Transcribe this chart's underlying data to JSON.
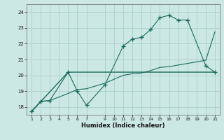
{
  "title": "",
  "xlabel": "Humidex (Indice chaleur)",
  "xlim": [
    0.5,
    21.5
  ],
  "ylim": [
    17.5,
    24.5
  ],
  "yticks": [
    18,
    19,
    20,
    21,
    22,
    23,
    24
  ],
  "xticks": [
    1,
    2,
    3,
    4,
    5,
    6,
    7,
    9,
    10,
    11,
    12,
    13,
    14,
    15,
    16,
    17,
    18,
    19,
    20,
    21
  ],
  "bg_color": "#cce8e4",
  "line_color": "#1a6b5e",
  "grid_color": "#aaceca",
  "line1_x": [
    1,
    2,
    3,
    5,
    6,
    7,
    9,
    11,
    12,
    13,
    14,
    15,
    16,
    17,
    18,
    20,
    21
  ],
  "line1_y": [
    17.7,
    18.35,
    18.4,
    20.2,
    19.0,
    18.1,
    19.4,
    21.85,
    22.3,
    22.4,
    22.9,
    23.65,
    23.8,
    23.5,
    23.5,
    20.6,
    20.2
  ],
  "line2_x": [
    1,
    5,
    21
  ],
  "line2_y": [
    17.7,
    20.2,
    20.2
  ],
  "line3_x": [
    1,
    2,
    3,
    5,
    6,
    7,
    9,
    11,
    12,
    13,
    14,
    15,
    16,
    17,
    18,
    19,
    20,
    21
  ],
  "line3_y": [
    17.7,
    18.35,
    18.4,
    18.85,
    19.1,
    19.15,
    19.5,
    20.0,
    20.1,
    20.15,
    20.3,
    20.5,
    20.55,
    20.65,
    20.75,
    20.85,
    20.95,
    22.75
  ]
}
